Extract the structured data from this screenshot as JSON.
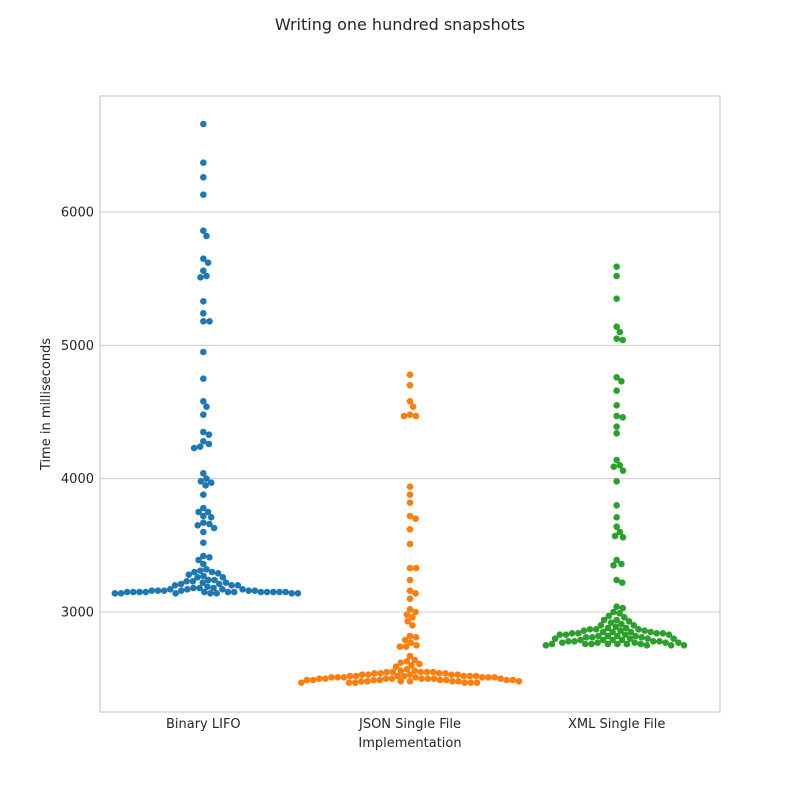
{
  "chart_data": {
    "type": "scatter",
    "title": "Writing one hundred snapshots",
    "xlabel": "Implementation",
    "ylabel": "Time in milliseconds",
    "categories": [
      "Binary LIFO",
      "JSON Single File",
      "XML Single File"
    ],
    "ylim": [
      2250,
      6870
    ],
    "yticks": [
      3000,
      4000,
      5000,
      6000
    ],
    "grid": true,
    "series": [
      {
        "color": "#1f77b4",
        "values": [
          6660,
          6370,
          6260,
          6130,
          5860,
          5820,
          5650,
          5620,
          5560,
          5520,
          5510,
          5330,
          5240,
          5180,
          5180,
          4950,
          4750,
          4580,
          4540,
          4480,
          4350,
          4330,
          4280,
          4260,
          4230,
          4240,
          4040,
          4000,
          3980,
          3970,
          3950,
          3880,
          3780,
          3750,
          3750,
          3720,
          3710,
          3670,
          3660,
          3650,
          3630,
          3600,
          3520,
          3420,
          3410,
          3390,
          3360,
          3320,
          3310,
          3300,
          3300,
          3290,
          3280,
          3270,
          3260,
          3260,
          3240,
          3240,
          3230,
          3230,
          3220,
          3220,
          3210,
          3210,
          3200,
          3200,
          3200,
          3190,
          3180,
          3180,
          3180,
          3170,
          3170,
          3170,
          3170,
          3160,
          3160,
          3160,
          3160,
          3160,
          3160,
          3150,
          3150,
          3150,
          3150,
          3150,
          3150,
          3150,
          3150,
          3150,
          3150,
          3150,
          3150,
          3140,
          3140,
          3140,
          3140,
          3140,
          3140,
          3140
        ]
      },
      {
        "color": "#ff7f0e",
        "values": [
          4780,
          4700,
          4580,
          4540,
          4480,
          4470,
          4470,
          3940,
          3880,
          3820,
          3720,
          3700,
          3620,
          3510,
          3330,
          3330,
          3240,
          3160,
          3140,
          3100,
          3020,
          3000,
          2980,
          2960,
          2930,
          2900,
          2820,
          2810,
          2790,
          2770,
          2750,
          2740,
          2740,
          2670,
          2640,
          2630,
          2620,
          2610,
          2600,
          2590,
          2570,
          2560,
          2560,
          2550,
          2550,
          2550,
          2550,
          2550,
          2540,
          2540,
          2540,
          2540,
          2530,
          2530,
          2530,
          2530,
          2530,
          2520,
          2520,
          2520,
          2520,
          2520,
          2520,
          2520,
          2510,
          2510,
          2510,
          2510,
          2510,
          2510,
          2510,
          2500,
          2500,
          2500,
          2500,
          2500,
          2500,
          2500,
          2500,
          2490,
          2490,
          2490,
          2490,
          2490,
          2490,
          2490,
          2490,
          2480,
          2480,
          2480,
          2480,
          2480,
          2480,
          2480,
          2470,
          2470,
          2470,
          2470,
          2470,
          2470
        ]
      },
      {
        "color": "#2ca02c",
        "values": [
          5590,
          5520,
          5350,
          5140,
          5100,
          5050,
          5040,
          4760,
          4730,
          4660,
          4550,
          4470,
          4460,
          4390,
          4340,
          4140,
          4100,
          4090,
          4060,
          3980,
          3800,
          3710,
          3640,
          3600,
          3570,
          3560,
          3390,
          3360,
          3350,
          3240,
          3220,
          3040,
          3030,
          3000,
          2990,
          2970,
          2960,
          2940,
          2940,
          2930,
          2920,
          2910,
          2900,
          2900,
          2890,
          2880,
          2880,
          2870,
          2870,
          2870,
          2860,
          2860,
          2860,
          2850,
          2850,
          2850,
          2850,
          2840,
          2840,
          2840,
          2840,
          2830,
          2830,
          2830,
          2830,
          2820,
          2820,
          2820,
          2820,
          2810,
          2810,
          2810,
          2800,
          2800,
          2800,
          2800,
          2790,
          2790,
          2790,
          2790,
          2780,
          2780,
          2780,
          2780,
          2770,
          2770,
          2770,
          2770,
          2770,
          2760,
          2760,
          2760,
          2760,
          2760,
          2760,
          2760,
          2750,
          2750,
          2750,
          2750
        ]
      }
    ]
  }
}
